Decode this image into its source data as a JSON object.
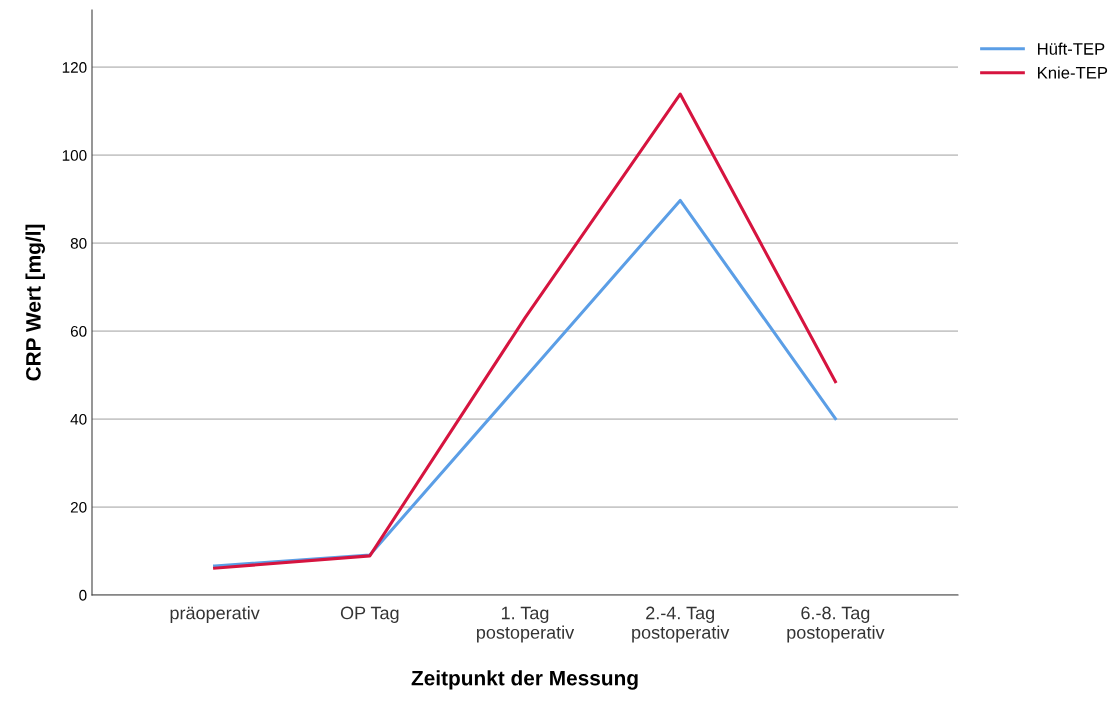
{
  "chart_data": {
    "type": "line",
    "xlabel": "Zeitpunkt der Messung",
    "ylabel": "CRP Wert [mg/l]",
    "categories": [
      "präoperativ",
      "OP Tag",
      "1. Tag\npostoperativ",
      "2.-4. Tag\npostoperativ",
      "6.-8. Tag\npostoperativ"
    ],
    "series": [
      {
        "name": "Hüft-TEP",
        "color": "#5b9ee6",
        "values": [
          6.6,
          9.1,
          49.4,
          89.7,
          40.1
        ]
      },
      {
        "name": "Knie-TEP",
        "color": "#d6143f",
        "values": [
          6.1,
          8.9,
          63,
          113.9,
          48.5
        ]
      }
    ],
    "ylim": [
      0,
      133
    ],
    "yticks": [
      0,
      20,
      40,
      60,
      80,
      100,
      120
    ],
    "grid": "y",
    "legend": "top right",
    "marker": "none",
    "line_style": "solid"
  }
}
